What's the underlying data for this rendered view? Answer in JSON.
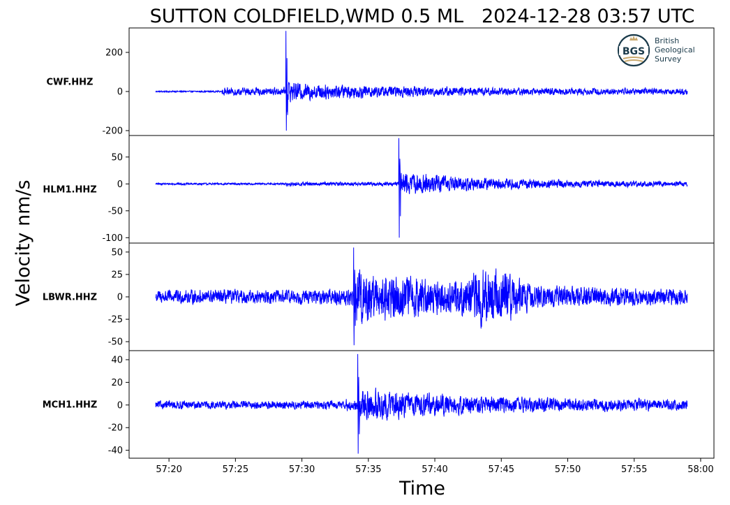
{
  "chart_data": {
    "type": "line",
    "title": "SUTTON COLDFIELD,WMD 0.5 ML   2024-12-28 03:57 UTC",
    "xlabel": "Time",
    "ylabel": "Velocity nm/s",
    "x_range_seconds_past_0357": [
      17,
      61
    ],
    "trace_start_seconds": 19,
    "trace_end_seconds": 59,
    "x_tick_labels": [
      "57:20",
      "57:25",
      "57:30",
      "57:35",
      "57:40",
      "57:45",
      "57:50",
      "57:55",
      "58:00"
    ],
    "x_tick_seconds": [
      20,
      25,
      30,
      35,
      40,
      45,
      50,
      55,
      60
    ],
    "line_color": "#0000ff",
    "grid": false,
    "series": [
      {
        "name": "CWF.HHZ",
        "ylim": [
          -225,
          325
        ],
        "y_ticks": [
          -200,
          0,
          200
        ],
        "y_tick_labels": [
          "-200",
          "0",
          "200"
        ],
        "noise_pre": 5,
        "noise_post": 26,
        "onset_seconds": 24.0,
        "p_arrival_seconds": 28.8,
        "peak_max": 310,
        "peak_min": -200,
        "coda_peak": 48
      },
      {
        "name": "HLM1.HHZ",
        "ylim": [
          -110,
          90
        ],
        "y_ticks": [
          -100,
          -50,
          0,
          50
        ],
        "y_tick_labels": [
          "-100",
          "-50",
          "0",
          "50"
        ],
        "noise_pre": 2.5,
        "noise_post": 5,
        "onset_seconds": 28.8,
        "p_arrival_seconds": 37.3,
        "peak_max": 85,
        "peak_min": -100,
        "coda_peak": 25
      },
      {
        "name": "LBWR.HHZ",
        "ylim": [
          -60,
          60
        ],
        "y_ticks": [
          -50,
          -25,
          0,
          25,
          50
        ],
        "y_tick_labels": [
          "-50",
          "-25",
          "0",
          "25",
          "50"
        ],
        "noise_pre": 11,
        "noise_post": 13,
        "onset_seconds": 32.5,
        "p_arrival_seconds": 33.9,
        "s_arrival_seconds": 44.0,
        "peak_max": 55,
        "peak_min": -54,
        "coda_peak": 35
      },
      {
        "name": "MCH1.HHZ",
        "ylim": [
          -47,
          48
        ],
        "y_ticks": [
          -40,
          -20,
          0,
          20,
          40
        ],
        "y_tick_labels": [
          "-40",
          "-20",
          "0",
          "20",
          "40"
        ],
        "noise_pre": 5,
        "noise_post": 7,
        "onset_seconds": 33.3,
        "p_arrival_seconds": 34.2,
        "peak_max": 45,
        "peak_min": -43,
        "coda_peak": 15
      }
    ]
  },
  "logo": {
    "name": "BGS",
    "text_lines": [
      "British",
      "Geological",
      "Survey"
    ],
    "color": "#1a3a4a",
    "accent": "#c9a96e"
  }
}
